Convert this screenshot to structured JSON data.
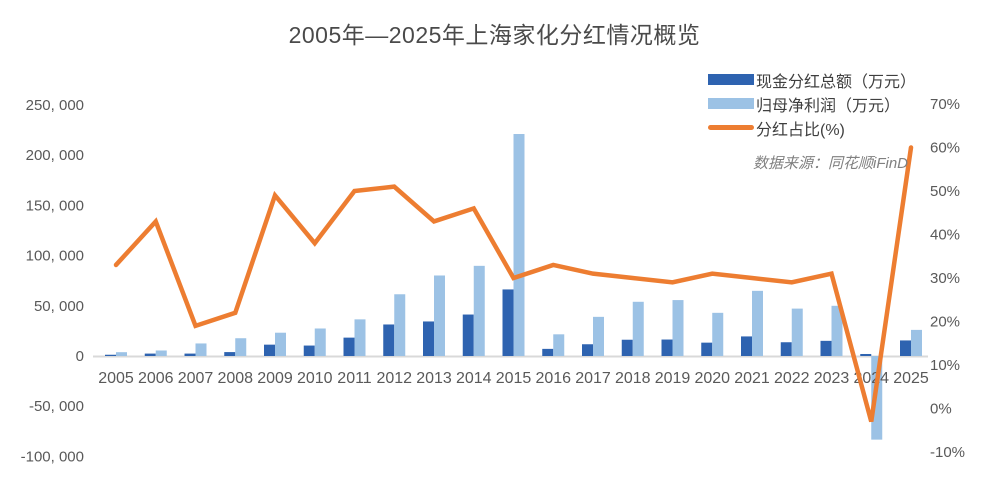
{
  "chart_data": {
    "type": "bar",
    "subtype": "combo-dual-axis-bar-line",
    "title": "2005年—2025年上海家化分红情况概览",
    "source_note": "数据来源：同花顺iFinD",
    "categories": [
      "2005",
      "2006",
      "2007",
      "2008",
      "2009",
      "2010",
      "2011",
      "2012",
      "2013",
      "2014",
      "2015",
      "2016",
      "2017",
      "2018",
      "2019",
      "2020",
      "2021",
      "2022",
      "2023",
      "2024",
      "2025"
    ],
    "series": [
      {
        "name": "现金分红总额（万元）",
        "type": "bar",
        "axis": "left",
        "color": "#2E63B0",
        "values": [
          1250,
          2400,
          2400,
          3900,
          11300,
          10400,
          18300,
          31400,
          34400,
          41300,
          66300,
          7100,
          11700,
          16200,
          16400,
          13300,
          19500,
          13700,
          15100,
          2000,
          15500
        ]
      },
      {
        "name": "归母净利润（万元）",
        "type": "bar",
        "axis": "left",
        "color": "#9CC2E5",
        "values": [
          3800,
          5500,
          12500,
          17700,
          23200,
          27400,
          36500,
          61500,
          80200,
          89800,
          221100,
          21600,
          39000,
          54000,
          55700,
          43000,
          64900,
          47200,
          50000,
          -83300,
          26000
        ]
      },
      {
        "name": "分红占比(%)",
        "type": "line",
        "axis": "right",
        "color": "#ED7D31",
        "values": [
          33,
          43,
          19,
          22,
          49,
          38,
          50,
          51,
          43,
          46,
          30,
          33,
          31,
          30,
          29,
          31,
          30,
          29,
          31,
          -3,
          60
        ]
      }
    ],
    "left_axis": {
      "min": -100000,
      "max": 250000,
      "tick_interval": 50000,
      "tick_labels": [
        "250, 000",
        "200, 000",
        "150, 000",
        "100, 000",
        "50, 000",
        "0",
        "-50, 000",
        "-100, 000"
      ]
    },
    "right_axis": {
      "min": -10,
      "max": 70,
      "tick_interval": 10,
      "unit": "%",
      "tick_labels": [
        "70%",
        "60%",
        "50%",
        "40%",
        "30%",
        "20%",
        "10%",
        "0%",
        "-10%"
      ]
    },
    "grid": false,
    "legend_position": "top-right",
    "colors": {
      "axis_text": "#595959",
      "title_text": "#4a4a4a",
      "baseline": "#D9D9D9"
    }
  }
}
